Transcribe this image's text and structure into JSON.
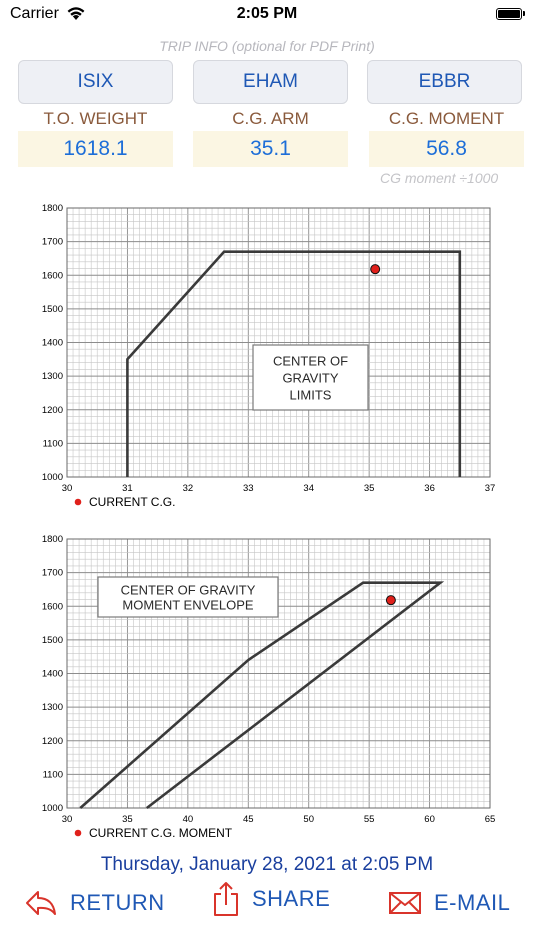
{
  "status": {
    "carrier": "Carrier",
    "time": "2:05 PM"
  },
  "trip_info_label": "TRIP INFO (optional for PDF Print)",
  "airports": [
    "ISIX",
    "EHAM",
    "EBBR"
  ],
  "weights": {
    "to_weight_label": "T.O. WEIGHT",
    "to_weight_value": "1618.1",
    "cg_arm_label": "C.G. ARM",
    "cg_arm_value": "35.1",
    "cg_moment_label": "C.G. MOMENT",
    "cg_moment_value": "56.8"
  },
  "cg_moment_note": "CG moment   ÷1000",
  "colors": {
    "accent": "#1f58b5",
    "value": "#1d6ed8",
    "label": "#8a5a3c",
    "point": "#e0201b"
  },
  "chart_data": [
    {
      "type": "line",
      "title": "CENTER OF GRAVITY LIMITS",
      "xlabel": "",
      "ylabel": "",
      "xlim": [
        30,
        37
      ],
      "ylim": [
        1000,
        1800
      ],
      "x_ticks": [
        30,
        31,
        32,
        33,
        34,
        35,
        36,
        37
      ],
      "y_ticks": [
        1000,
        1100,
        1200,
        1300,
        1400,
        1500,
        1600,
        1700,
        1800
      ],
      "grid": true,
      "series": [
        {
          "values": [
            [
              31,
              1000
            ],
            [
              31,
              1350
            ],
            [
              32.6,
              1670
            ],
            [
              36.5,
              1670
            ],
            [
              36.5,
              1000
            ]
          ]
        }
      ],
      "point": {
        "x": 35.1,
        "y": 1618.1
      },
      "legend": {
        "position": "bottom-left",
        "label": "CURRENT C.G."
      }
    },
    {
      "type": "line",
      "title": "CENTER OF GRAVITY MOMENT ENVELOPE",
      "xlabel": "",
      "ylabel": "",
      "xlim": [
        30,
        65
      ],
      "ylim": [
        1000,
        1800
      ],
      "x_ticks": [
        30,
        35,
        40,
        45,
        50,
        55,
        60,
        65
      ],
      "y_ticks": [
        1000,
        1100,
        1200,
        1300,
        1400,
        1500,
        1600,
        1700,
        1800
      ],
      "grid": true,
      "series": [
        {
          "values": [
            [
              31.1,
              1000
            ],
            [
              45,
              1440
            ],
            [
              54.5,
              1670
            ],
            [
              60.9,
              1670
            ],
            [
              36.6,
              1000
            ]
          ]
        }
      ],
      "point": {
        "x": 56.8,
        "y": 1618.1
      },
      "legend": {
        "position": "bottom-left",
        "label": "CURRENT C.G. MOMENT"
      }
    }
  ],
  "chart_titles": [
    [
      "CENTER OF",
      "GRAVITY",
      "LIMITS"
    ],
    [
      "CENTER OF GRAVITY",
      "MOMENT ENVELOPE"
    ]
  ],
  "datetime": "Thursday, January 28, 2021 at 2:05 PM",
  "actions": {
    "return": "RETURN",
    "share": "SHARE",
    "email": "E-MAIL"
  }
}
